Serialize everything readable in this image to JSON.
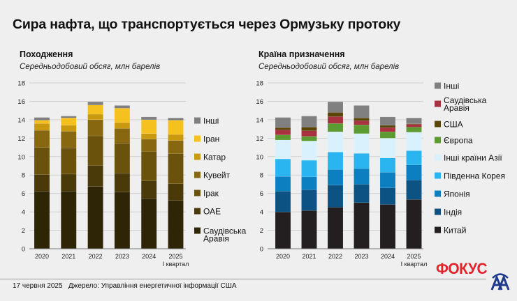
{
  "title": "Сира нафта, що транспортується через Ормузьку протоку",
  "footer": {
    "date": "17 червня 2025",
    "source": "Джерело: Управління енергетичної інформації США",
    "brand": "ФОКУС",
    "logo": "AA"
  },
  "chart_data": [
    {
      "type": "bar",
      "stacked": true,
      "title": "Походження",
      "subtitle": "Середньодобовий обсяг, млн барелів",
      "categories": [
        "2020",
        "2021",
        "2022",
        "2023",
        "2024",
        "2025"
      ],
      "category_sublabels": [
        "",
        "",
        "",
        "",
        "",
        "I квартал"
      ],
      "ylim": [
        0,
        18
      ],
      "yticks": [
        0,
        2,
        4,
        6,
        8,
        10,
        12,
        14,
        16,
        18
      ],
      "grid": true,
      "legend_position": "right",
      "series": [
        {
          "name": "Саудівська Аравія",
          "color": "#2e2406",
          "values": [
            6.25,
            6.25,
            6.75,
            6.15,
            5.45,
            5.25
          ]
        },
        {
          "name": "ОАЕ",
          "color": "#4a3a09",
          "values": [
            1.8,
            1.85,
            2.3,
            2.05,
            1.9,
            1.8
          ]
        },
        {
          "name": "Ірак",
          "color": "#6a520c",
          "values": [
            2.95,
            2.85,
            3.2,
            3.25,
            3.2,
            3.25
          ]
        },
        {
          "name": "Кувейт",
          "color": "#876810",
          "values": [
            1.85,
            1.8,
            1.75,
            1.6,
            1.35,
            1.45
          ]
        },
        {
          "name": "Катар",
          "color": "#c99a10",
          "values": [
            0.75,
            0.65,
            0.6,
            0.65,
            0.6,
            0.65
          ]
        },
        {
          "name": "Іран",
          "color": "#f5c11f",
          "values": [
            0.35,
            0.8,
            1.0,
            1.55,
            1.5,
            1.55
          ]
        },
        {
          "name": "Інші",
          "color": "#7f7f7f",
          "values": [
            0.3,
            0.2,
            0.35,
            0.3,
            0.3,
            0.25
          ]
        }
      ],
      "legend_order": [
        "Інші",
        "Іран",
        "Катар",
        "Кувейт",
        "Ірак",
        "ОАЕ",
        "Саудівська Аравія"
      ]
    },
    {
      "type": "bar",
      "stacked": true,
      "title": "Країна призначення",
      "subtitle": "Середньодобовий обсяг, млн барелів",
      "categories": [
        "2020",
        "2021",
        "2022",
        "2023",
        "2024",
        "2025"
      ],
      "category_sublabels": [
        "",
        "",
        "",
        "",
        "",
        "I квартал"
      ],
      "ylim": [
        0,
        18
      ],
      "yticks": [
        0,
        2,
        4,
        6,
        8,
        10,
        12,
        14,
        16,
        18
      ],
      "grid": true,
      "legend_position": "right",
      "series": [
        {
          "name": "Китай",
          "color": "#231f20",
          "values": [
            4.0,
            4.15,
            4.5,
            5.0,
            4.8,
            5.35
          ]
        },
        {
          "name": "Індія",
          "color": "#0c5283",
          "values": [
            2.25,
            2.25,
            2.4,
            2.0,
            1.8,
            2.1
          ]
        },
        {
          "name": "Японія",
          "color": "#0b7fc0",
          "values": [
            1.6,
            1.4,
            1.7,
            1.7,
            1.7,
            1.65
          ]
        },
        {
          "name": "Південна Корея",
          "color": "#2ab5f0",
          "values": [
            1.9,
            1.8,
            1.9,
            1.65,
            1.55,
            1.55
          ]
        },
        {
          "name": "Інші країни Азії",
          "color": "#d8f1fc",
          "values": [
            2.05,
            2.1,
            2.2,
            2.15,
            2.15,
            2.0
          ]
        },
        {
          "name": "Європа",
          "color": "#5c9a32",
          "values": [
            0.55,
            0.5,
            0.9,
            0.95,
            0.7,
            0.55
          ]
        },
        {
          "name": "Саудівська Аравія",
          "color": "#a8323f",
          "values": [
            0.55,
            0.6,
            0.75,
            0.45,
            0.45,
            0.3
          ]
        },
        {
          "name": "США",
          "color": "#5a4508",
          "values": [
            0.25,
            0.4,
            0.45,
            0.3,
            0.25,
            0.05
          ]
        },
        {
          "name": "Інші",
          "color": "#808080",
          "values": [
            1.1,
            1.2,
            1.15,
            1.35,
            0.9,
            0.65
          ]
        }
      ],
      "legend_order": [
        "Інші",
        "Саудівська Аравія",
        "США",
        "Європа",
        "Інші країни Азії",
        "Південна Корея",
        "Японія",
        "Індія",
        "Китай"
      ]
    }
  ]
}
